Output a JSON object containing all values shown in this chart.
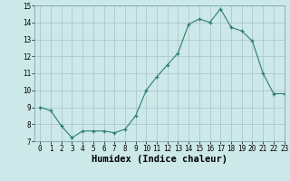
{
  "x": [
    0,
    1,
    2,
    3,
    4,
    5,
    6,
    7,
    8,
    9,
    10,
    11,
    12,
    13,
    14,
    15,
    16,
    17,
    18,
    19,
    20,
    21,
    22,
    23
  ],
  "y": [
    9.0,
    8.8,
    7.9,
    7.2,
    7.6,
    7.6,
    7.6,
    7.5,
    7.7,
    8.5,
    10.0,
    10.8,
    11.5,
    12.2,
    13.9,
    14.2,
    14.0,
    14.8,
    13.7,
    13.5,
    12.9,
    11.0,
    9.8,
    9.8
  ],
  "line_color": "#2e7d6e",
  "marker": "+",
  "marker_size": 3,
  "bg_color": "#cce8e8",
  "grid_color": "#adc8c8",
  "xlabel": "Humidex (Indice chaleur)",
  "ylim": [
    7,
    15
  ],
  "xlim": [
    -0.5,
    23
  ],
  "yticks": [
    7,
    8,
    9,
    10,
    11,
    12,
    13,
    14,
    15
  ],
  "xticks": [
    0,
    1,
    2,
    3,
    4,
    5,
    6,
    7,
    8,
    9,
    10,
    11,
    12,
    13,
    14,
    15,
    16,
    17,
    18,
    19,
    20,
    21,
    22,
    23
  ],
  "tick_fontsize": 5.5,
  "xlabel_fontsize": 7.5,
  "xlabel_fontfamily": "monospace"
}
